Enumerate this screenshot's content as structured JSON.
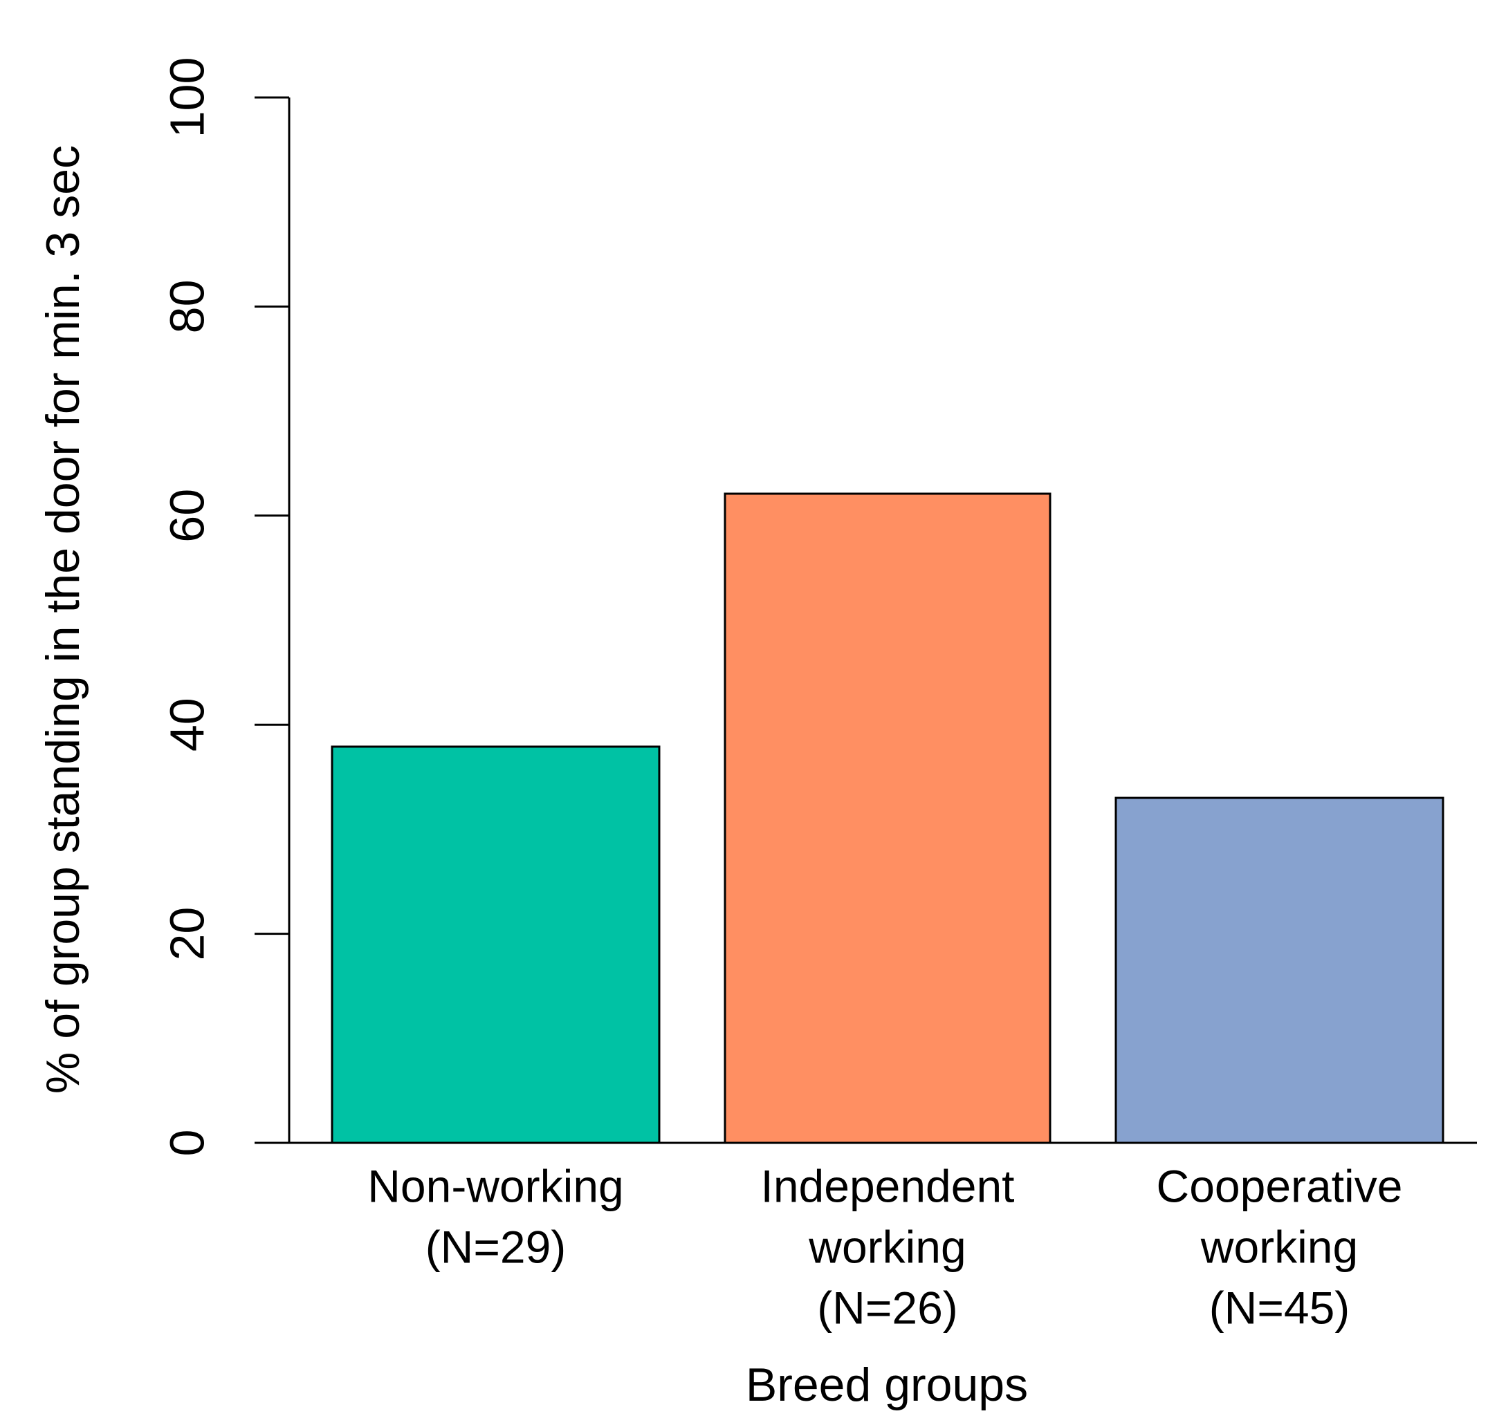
{
  "chart_data": {
    "type": "bar",
    "y_label": "% of group standing in the door for min. 3 sec",
    "x_label": "Breed groups",
    "categories": [
      [
        "Non-working",
        "(N=29)"
      ],
      [
        "Independent",
        "working",
        "(N=26)"
      ],
      [
        "Cooperative",
        "working",
        "(N=45)"
      ]
    ],
    "values": [
      37.9,
      62.1,
      33
    ],
    "colors": [
      "#00c2a4",
      "#ff8f62",
      "#87a2cf"
    ],
    "ylim": [
      0,
      100
    ],
    "yticks": [
      0,
      20,
      40,
      60,
      80,
      100
    ]
  }
}
